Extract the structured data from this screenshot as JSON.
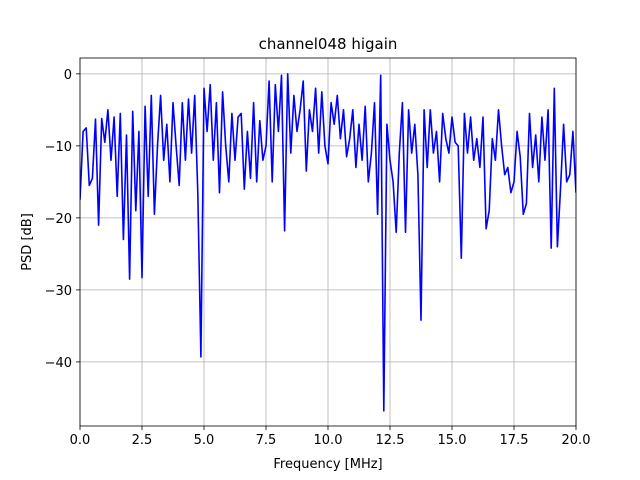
{
  "chart_data": {
    "type": "line",
    "title": "channel048 higain",
    "x_label": "Frequency [MHz]",
    "y_label": "PSD [dB]",
    "xlim": [
      0,
      20
    ],
    "ylim": [
      -48.9,
      2.2
    ],
    "xticks": [
      {
        "value": 0,
        "label": "0.0"
      },
      2.5,
      {
        "value": 5,
        "label": "5.0"
      },
      7.5,
      {
        "value": 10,
        "label": "10.0"
      },
      12.5,
      {
        "value": 15,
        "label": "15.0"
      },
      17.5,
      {
        "value": 20,
        "label": "20.0"
      }
    ],
    "yticks": [
      0,
      {
        "value": -10,
        "label": "−10"
      },
      {
        "value": -20,
        "label": "−20"
      },
      {
        "value": -30,
        "label": "−30"
      },
      {
        "value": -40,
        "label": "−40"
      }
    ],
    "grid": true,
    "x": [
      0,
      0.125,
      0.25,
      0.375,
      0.5,
      0.625,
      0.75,
      0.875,
      1,
      1.125,
      1.25,
      1.375,
      1.5,
      1.625,
      1.75,
      1.875,
      2,
      2.125,
      2.25,
      2.375,
      2.5,
      2.625,
      2.75,
      2.875,
      3,
      3.125,
      3.25,
      3.375,
      3.5,
      3.625,
      3.75,
      3.875,
      4,
      4.125,
      4.25,
      4.375,
      4.5,
      4.625,
      4.75,
      4.875,
      5,
      5.125,
      5.25,
      5.375,
      5.5,
      5.625,
      5.75,
      5.875,
      6,
      6.125,
      6.25,
      6.375,
      6.5,
      6.625,
      6.75,
      6.875,
      7,
      7.125,
      7.25,
      7.375,
      7.5,
      7.625,
      7.75,
      7.875,
      8,
      8.125,
      8.25,
      8.375,
      8.5,
      8.625,
      8.75,
      8.875,
      9,
      9.125,
      9.25,
      9.375,
      9.5,
      9.625,
      9.75,
      9.875,
      10,
      10.125,
      10.25,
      10.375,
      10.5,
      10.625,
      10.75,
      10.875,
      11,
      11.125,
      11.25,
      11.375,
      11.5,
      11.625,
      11.75,
      11.875,
      12,
      12.125,
      12.25,
      12.375,
      12.5,
      12.625,
      12.75,
      12.875,
      13,
      13.125,
      13.25,
      13.375,
      13.5,
      13.625,
      13.75,
      13.875,
      14,
      14.125,
      14.25,
      14.375,
      14.5,
      14.625,
      14.75,
      14.875,
      15,
      15.125,
      15.25,
      15.375,
      15.5,
      15.625,
      15.75,
      15.875,
      16,
      16.125,
      16.25,
      16.375,
      16.5,
      16.625,
      16.75,
      16.875,
      17,
      17.125,
      17.25,
      17.375,
      17.5,
      17.625,
      17.75,
      17.875,
      18,
      18.125,
      18.25,
      18.375,
      18.5,
      18.625,
      18.75,
      18.875,
      19,
      19.125,
      19.25,
      19.375,
      19.5,
      19.625,
      19.75,
      19.875,
      20
    ],
    "series": [
      {
        "color": "#0000ff",
        "values": [
          -17.5,
          -8,
          -7.5,
          -15.5,
          -14.5,
          -6.3,
          -21,
          -6.2,
          -9.5,
          -5,
          -12,
          -6,
          -17,
          -5.5,
          -23,
          -8.5,
          -28.5,
          -5.2,
          -19,
          -8,
          -28.3,
          -4.5,
          -17,
          -3,
          -19.5,
          -10,
          -3,
          -12,
          -7,
          -15,
          -4,
          -10,
          -15.5,
          -4,
          -12,
          -3.5,
          -11,
          -3,
          -16.5,
          -39.3,
          -2,
          -8,
          -1.5,
          -12,
          -4,
          -16.5,
          -2.5,
          -10,
          -15,
          -5.5,
          -12,
          -6,
          -5.5,
          -16,
          -8,
          -14.5,
          -4,
          -15,
          -6.5,
          -12,
          -10,
          -1,
          -15,
          -1.5,
          -8,
          -0.2,
          -21.8,
          0,
          -11,
          -3,
          -8,
          -5,
          -1,
          -13.5,
          -5,
          -8,
          -2,
          -11,
          -2.5,
          -10,
          -12.5,
          -4,
          -7,
          -3,
          -9,
          -5,
          -11.5,
          -9,
          -5,
          -13,
          -7,
          -12,
          -4.5,
          -15,
          -11,
          -4,
          -19.5,
          -0.2,
          -46.8,
          -7,
          -12,
          -15,
          -22,
          -11,
          -4,
          -22,
          -5,
          -11,
          -7,
          -14,
          -34.2,
          -5,
          -13,
          -5,
          -11,
          -8,
          -15,
          -5.5,
          -9,
          -11,
          -6,
          -9.5,
          -10,
          -25.6,
          -5.5,
          -11,
          -6,
          -12,
          -9,
          -13,
          -6,
          -21.5,
          -19,
          -9,
          -12,
          -5,
          -10,
          -14,
          -13,
          -16.5,
          -15,
          -8,
          -11.5,
          -19.5,
          -18,
          -5.5,
          -13,
          -8.5,
          -15,
          -6,
          -12,
          -5,
          -24.2,
          -2,
          -24,
          -16,
          -7,
          -15,
          -14,
          -8,
          -16.5
        ]
      }
    ]
  }
}
